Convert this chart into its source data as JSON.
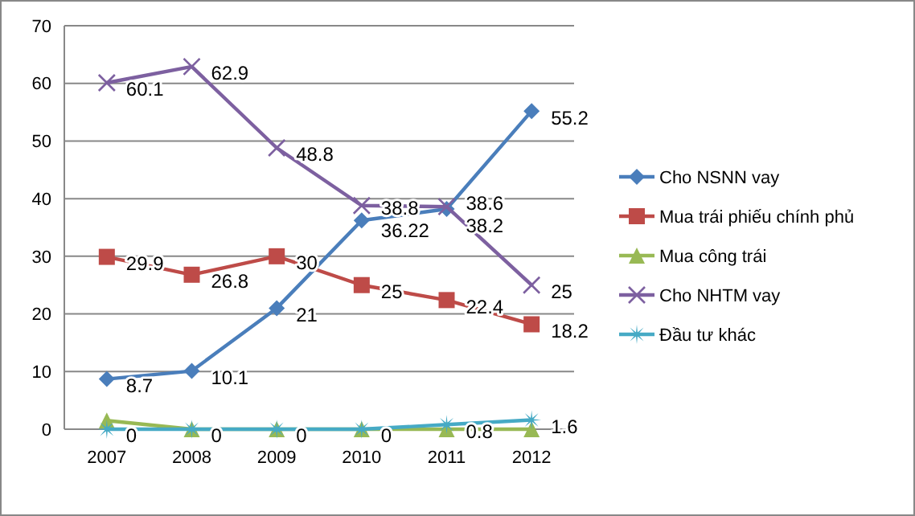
{
  "chart_data": {
    "type": "line",
    "categories": [
      "2007",
      "2008",
      "2009",
      "2010",
      "2011",
      "2012"
    ],
    "ylim": [
      0,
      70
    ],
    "yticks": [
      0,
      10,
      20,
      30,
      40,
      50,
      60,
      70
    ],
    "grid": "y",
    "legend": "right",
    "series": [
      {
        "name": "Cho NSNN vay",
        "color": "#4a7ebb",
        "marker": "diamond",
        "values": [
          8.7,
          10.1,
          21,
          36.22,
          38.2,
          55.2
        ],
        "value_labels": [
          "8.7",
          "10.1",
          "21",
          "36.22",
          "38.2",
          "55.2"
        ]
      },
      {
        "name": "Mua trái phiếu chính phủ",
        "color": "#be4b48",
        "marker": "square",
        "values": [
          29.9,
          26.8,
          30,
          25,
          22.4,
          18.2
        ],
        "value_labels": [
          "29.9",
          "26.8",
          "30",
          "25",
          "22.4",
          "18.2"
        ]
      },
      {
        "name": "Mua công trái",
        "color": "#98b954",
        "marker": "triangle",
        "values": [
          1.5,
          0,
          0,
          0,
          0,
          0
        ]
      },
      {
        "name": "Cho NHTM vay",
        "color": "#7d60a0",
        "marker": "cross",
        "values": [
          60.1,
          62.9,
          48.8,
          38.8,
          38.6,
          25
        ],
        "value_labels": [
          "60.1",
          "62.9",
          "48.8",
          "38.8",
          "38.6",
          "25"
        ]
      },
      {
        "name": "Đầu tư khác",
        "color": "#46aac5",
        "marker": "star",
        "values": [
          0,
          0,
          0,
          0,
          0.8,
          1.6
        ],
        "value_labels": [
          "0",
          "0",
          "0",
          "0",
          "0.8",
          "1.6"
        ]
      }
    ]
  }
}
